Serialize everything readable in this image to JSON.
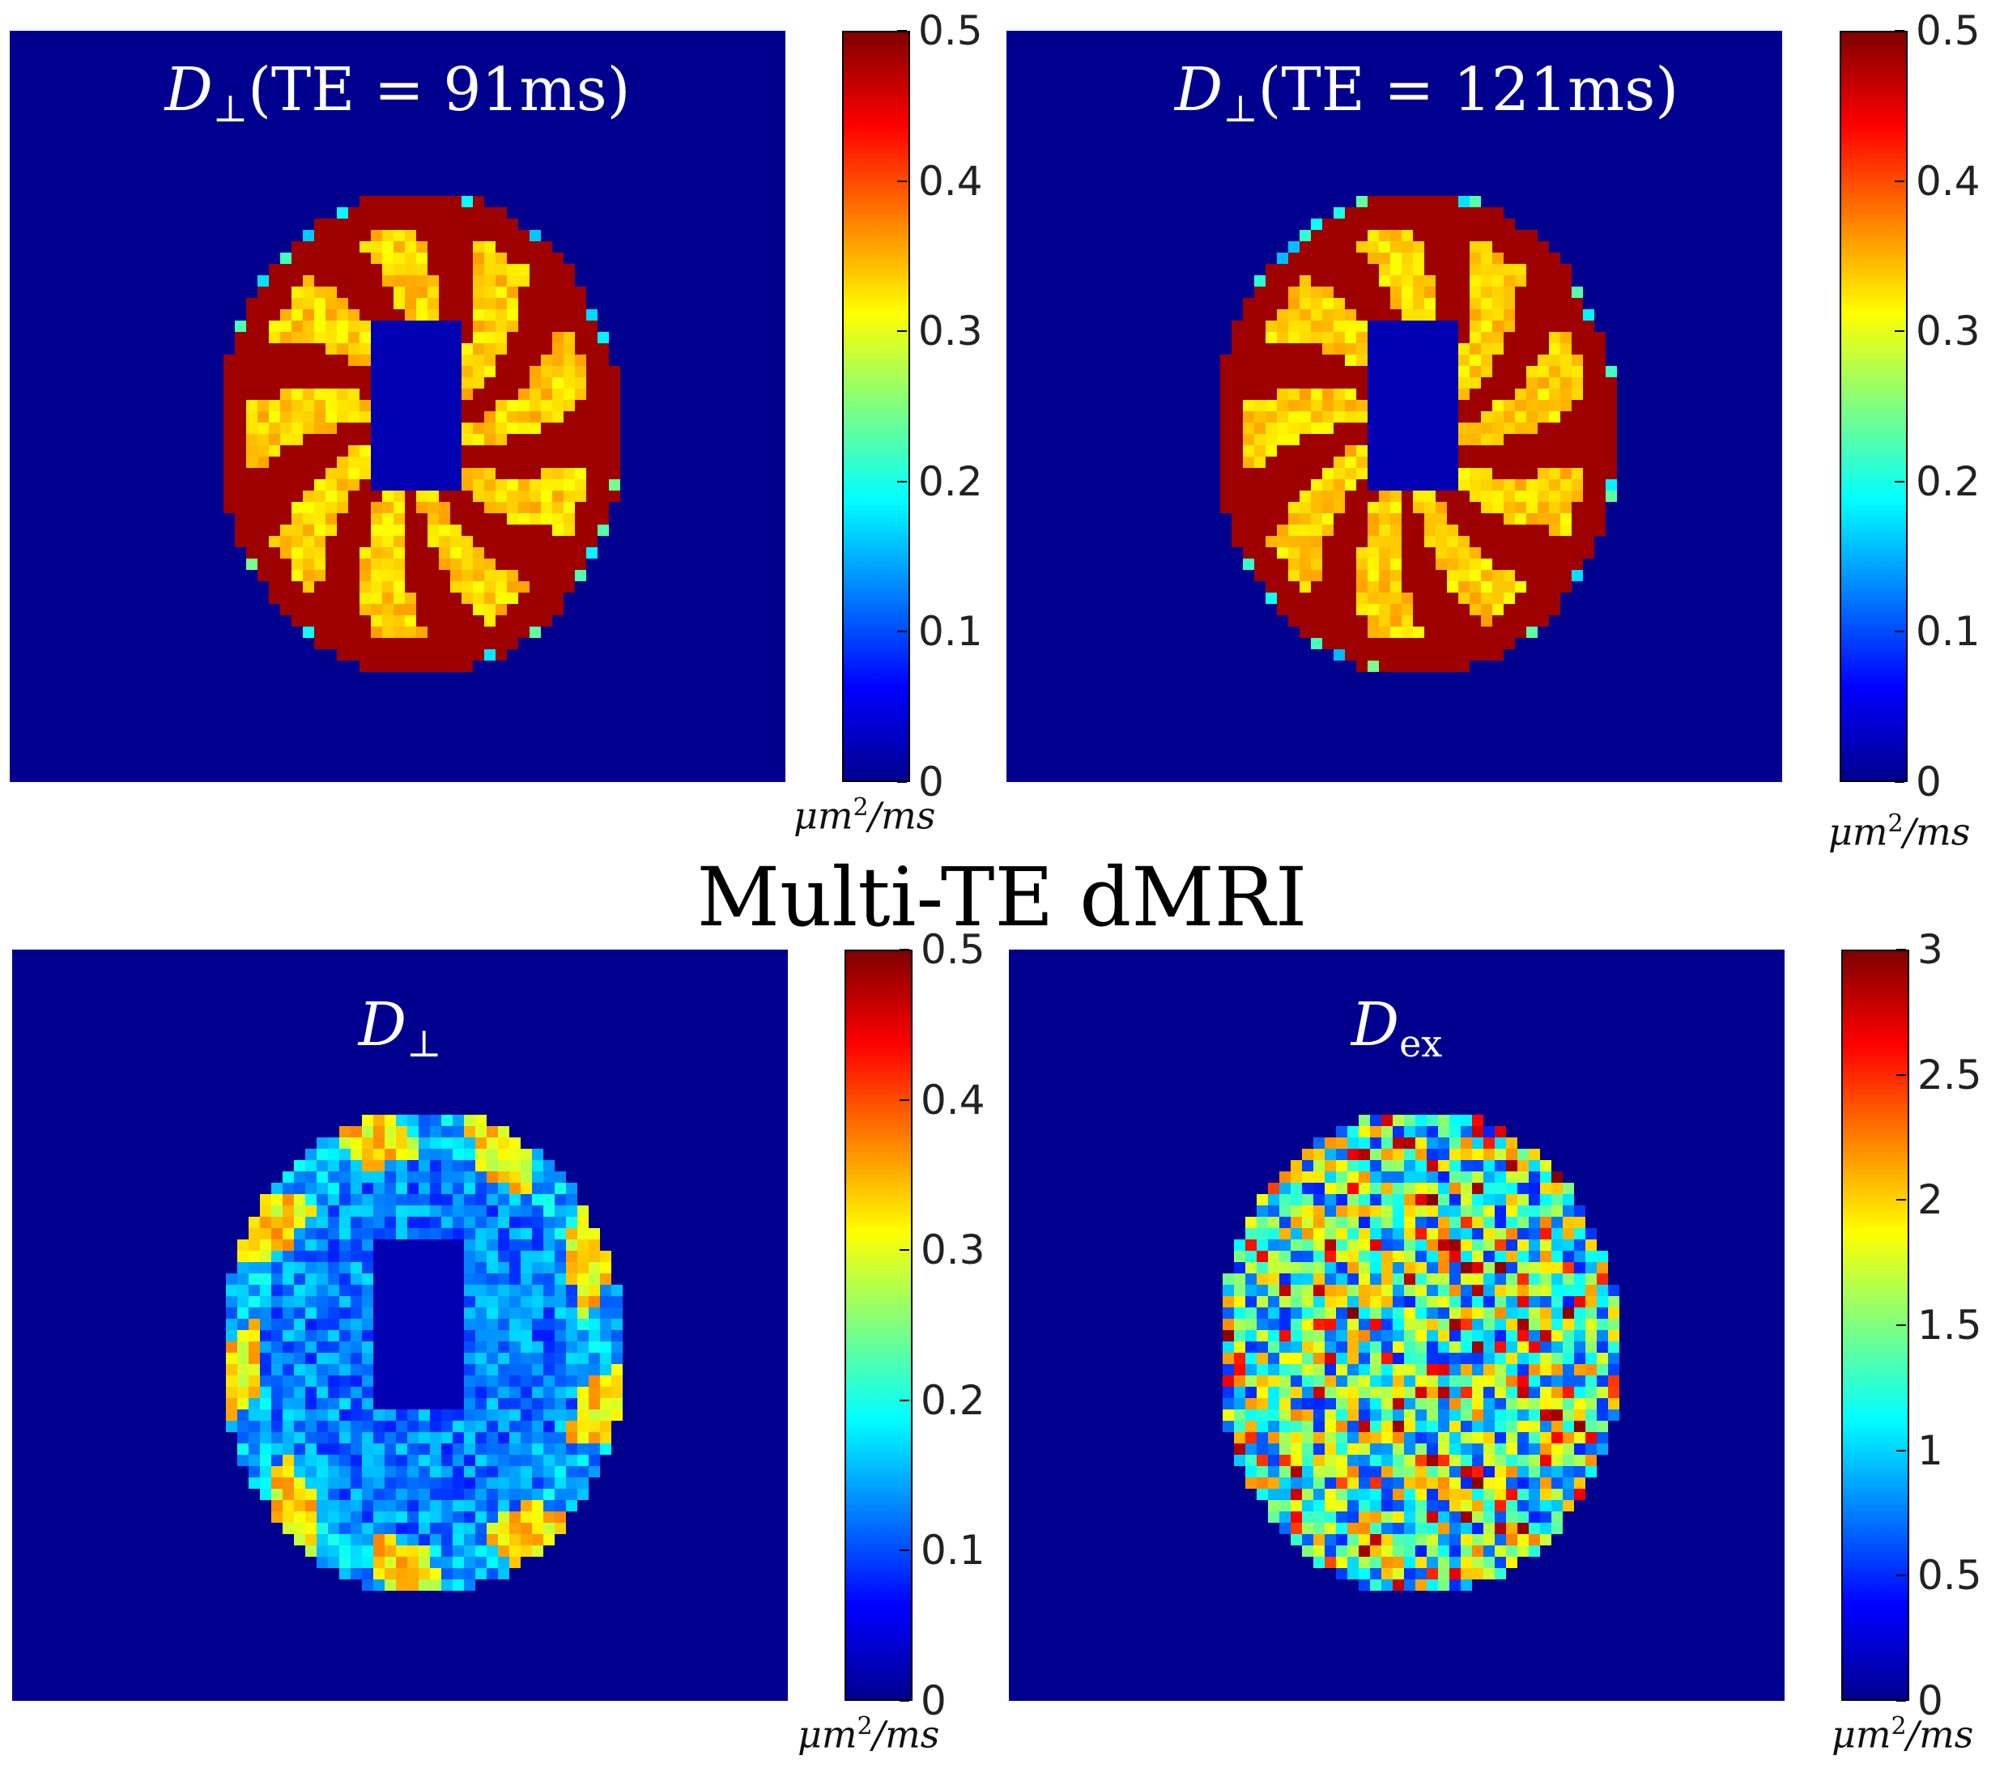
{
  "figure_title": "Multi-TE dMRI",
  "panels": [
    {
      "title_symbol": "D",
      "title_subscript": "⊥",
      "title_suffix": "(TE = 91ms)",
      "colorbar": {
        "ticks": [
          "0",
          "0.1",
          "0.2",
          "0.3",
          "0.4",
          "0.5"
        ],
        "unit": "μm",
        "unit_sup": "2",
        "unit_tail": "/ms"
      },
      "colormap": "jet",
      "background_color": "#00008f",
      "pattern": "white-matter-high"
    },
    {
      "title_symbol": "D",
      "title_subscript": "⊥",
      "title_suffix": "(TE = 121ms)",
      "colorbar": {
        "ticks": [
          "0",
          "0.1",
          "0.2",
          "0.3",
          "0.4",
          "0.5"
        ],
        "unit": "μm",
        "unit_sup": "2",
        "unit_tail": "/ms"
      },
      "colormap": "jet",
      "background_color": "#00008f",
      "pattern": "white-matter-high"
    },
    {
      "title_symbol": "D",
      "title_subscript": "⊥",
      "title_suffix": "",
      "colorbar": {
        "ticks": [
          "0",
          "0.1",
          "0.2",
          "0.3",
          "0.4",
          "0.5"
        ],
        "unit": "μm",
        "unit_sup": "2",
        "unit_tail": "/ms"
      },
      "colormap": "jet",
      "background_color": "#00008f",
      "pattern": "cortex-high"
    },
    {
      "title_symbol": "D",
      "title_subscript": "ex",
      "title_suffix": "",
      "colorbar": {
        "ticks": [
          "0",
          "0.5",
          "1",
          "1.5",
          "2",
          "2.5",
          "3"
        ],
        "unit": "μm",
        "unit_sup": "2",
        "unit_tail": "/ms"
      },
      "colormap": "jet",
      "background_color": "#00008f",
      "pattern": "noisy"
    }
  ]
}
